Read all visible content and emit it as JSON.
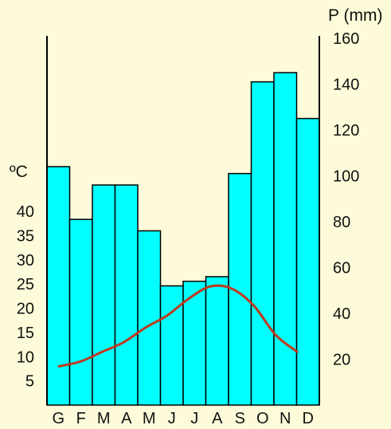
{
  "chart_data": {
    "type": "bar",
    "title": "",
    "categories": [
      "G",
      "F",
      "M",
      "A",
      "M",
      "J",
      "J",
      "A",
      "S",
      "O",
      "N",
      "D"
    ],
    "precipitation": {
      "unit_label": "P (mm)",
      "values": [
        104,
        81,
        96,
        96,
        76,
        52,
        54,
        56,
        101,
        141,
        145,
        125
      ],
      "ylim": [
        0,
        160
      ],
      "ticks": [
        20,
        40,
        60,
        80,
        100,
        120,
        140,
        160
      ],
      "axis": "right"
    },
    "temperature": {
      "unit_label": "ºC",
      "values": [
        8,
        9,
        11,
        13,
        16,
        18.5,
        22,
        24.5,
        24,
        20.5,
        14.5,
        11
      ],
      "ylim": [
        0,
        40
      ],
      "ticks": [
        5,
        10,
        15,
        20,
        25,
        30,
        35,
        40
      ],
      "axis": "left"
    },
    "grid": false,
    "legend": "none"
  },
  "colors": {
    "background": "#fdfbd9",
    "bar_fill": "#00ffff",
    "bar_stroke": "#000000",
    "line": "#c0391f",
    "axis": "#000000"
  }
}
